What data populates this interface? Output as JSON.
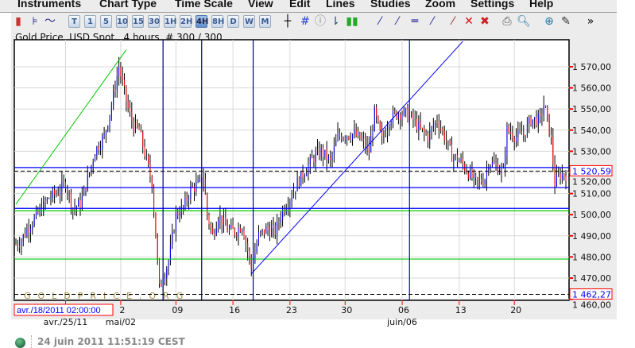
{
  "menu": [
    "Instruments",
    "Chart Type",
    "Time Scale",
    "View",
    "Edit",
    "Lines",
    "Studies",
    "Zoom",
    "Settings",
    "Help"
  ],
  "toolbar": {
    "timescales": [
      "T",
      "1",
      "5",
      "10",
      "15",
      "30",
      "1H",
      "2H",
      "4H",
      "8H",
      "D",
      "W",
      "M"
    ],
    "selected": "4H",
    "icons": [
      "candlestick-icon",
      "ohlc-bar-icon",
      "line-chart-icon",
      "crosshair-icon",
      "grid-icon",
      "info-icon",
      "price-label-icon",
      "volume-icon",
      "draw-line-icon",
      "draw-line-2-icon",
      "horizontal-line-icon",
      "draw-line-3-icon",
      "delete-line-icon",
      "delete-icon",
      "delete-all-icon",
      "print-icon",
      "print-preview-icon",
      "zoom-in-icon",
      "pin-icon",
      "overflow-icon"
    ]
  },
  "chart_title": "Gold Price, USD Spot , 4 hours, # 300 / 300",
  "watermark": "GOLDPRICE.ORG",
  "cursor_time_label": "avr./18/2011 02:00:00",
  "status": {
    "text": "24 juin 2011 11:51:19 CEST",
    "indicator_color": "#2e7d4f"
  },
  "chart_data": {
    "type": "ohlc",
    "bars": 300,
    "ylim": [
      1460,
      1580
    ],
    "y_ticks": [
      "1 460,00",
      "1 470,00",
      "1 480,00",
      "1 490,00",
      "1 500,00",
      "1 510,00",
      "1 520,00",
      "1 530,00",
      "1 540,00",
      "1 550,00",
      "1 560,00",
      "1 570,00"
    ],
    "y_values": [
      1460,
      1470,
      1480,
      1490,
      1500,
      1510,
      1520,
      1530,
      1540,
      1550,
      1560,
      1570
    ],
    "x_ticks": [
      {
        "label": "2",
        "bar": 57
      },
      {
        "label": "09",
        "bar": 87
      },
      {
        "label": "16",
        "bar": 118
      },
      {
        "label": "23",
        "bar": 149
      },
      {
        "label": "30",
        "bar": 179
      },
      {
        "label": "06",
        "bar": 210
      },
      {
        "label": "13",
        "bar": 241
      },
      {
        "label": "20",
        "bar": 271
      }
    ],
    "x_month_labels": [
      {
        "label": "avr./25/11",
        "bar": 27
      },
      {
        "label": "mai/02",
        "bar": 57
      },
      {
        "label": "juin/06",
        "bar": 210
      }
    ],
    "close_path": [
      [
        0,
        1486
      ],
      [
        3,
        1488
      ],
      [
        6,
        1493
      ],
      [
        14,
        1503
      ],
      [
        18,
        1508
      ],
      [
        22,
        1510
      ],
      [
        27,
        1515
      ],
      [
        31,
        1503
      ],
      [
        35,
        1505
      ],
      [
        40,
        1520
      ],
      [
        43,
        1530
      ],
      [
        48,
        1537
      ],
      [
        52,
        1552
      ],
      [
        56,
        1570
      ],
      [
        61,
        1550
      ],
      [
        64,
        1542
      ],
      [
        67,
        1540
      ],
      [
        72,
        1522
      ],
      [
        74,
        1515
      ],
      [
        78,
        1465
      ],
      [
        83,
        1478
      ],
      [
        87,
        1500
      ],
      [
        91,
        1503
      ],
      [
        95,
        1512
      ],
      [
        100,
        1515
      ],
      [
        102,
        1518
      ],
      [
        104,
        1500
      ],
      [
        107,
        1490
      ],
      [
        110,
        1500
      ],
      [
        115,
        1493
      ],
      [
        119,
        1492
      ],
      [
        123,
        1495
      ],
      [
        128,
        1475
      ],
      [
        132,
        1490
      ],
      [
        136,
        1493
      ],
      [
        141,
        1492
      ],
      [
        145,
        1502
      ],
      [
        149,
        1508
      ],
      [
        153,
        1515
      ],
      [
        158,
        1522
      ],
      [
        162,
        1527
      ],
      [
        166,
        1530
      ],
      [
        171,
        1525
      ],
      [
        175,
        1537
      ],
      [
        179,
        1538
      ],
      [
        184,
        1538
      ],
      [
        188,
        1535
      ],
      [
        192,
        1530
      ],
      [
        195,
        1548
      ],
      [
        199,
        1535
      ],
      [
        203,
        1545
      ],
      [
        207,
        1548
      ],
      [
        211,
        1548
      ],
      [
        216,
        1545
      ],
      [
        220,
        1540
      ],
      [
        224,
        1537
      ],
      [
        229,
        1545
      ],
      [
        233,
        1537
      ],
      [
        237,
        1528
      ],
      [
        242,
        1525
      ],
      [
        246,
        1520
      ],
      [
        250,
        1515
      ],
      [
        255,
        1517
      ],
      [
        257,
        1525
      ],
      [
        261,
        1523
      ],
      [
        265,
        1520
      ],
      [
        267,
        1540
      ],
      [
        272,
        1537
      ],
      [
        276,
        1538
      ],
      [
        280,
        1545
      ],
      [
        285,
        1545
      ],
      [
        287,
        1552
      ],
      [
        289,
        1545
      ],
      [
        291,
        1535
      ],
      [
        293,
        1515
      ],
      [
        296,
        1519
      ],
      [
        299,
        1519
      ]
    ],
    "last_price_label": "1 520,59",
    "last_price": 1520.59,
    "low_label": "1 462,27",
    "low_price": 1462.27,
    "horizontal_lines": [
      {
        "price": 1522.3,
        "color": "#0000ff"
      },
      {
        "price": 1512.8,
        "color": "#0000ff"
      },
      {
        "price": 1503,
        "color": "#0000ff"
      },
      {
        "price": 1501.8,
        "color": "#00cc00"
      },
      {
        "price": 1479,
        "color": "#00cc00"
      }
    ],
    "vertical_lines": [
      {
        "bar": 80,
        "color": "#000080"
      },
      {
        "bar": 101,
        "color": "#000080"
      },
      {
        "bar": 129,
        "color": "#000080"
      },
      {
        "bar": 214,
        "color": "#0000ff"
      }
    ],
    "trendlines": [
      {
        "from": [
          0,
          1505
        ],
        "to": [
          60,
          1578
        ],
        "color": "#00cc00"
      },
      {
        "from": [
          128,
          1472
        ],
        "to": [
          243,
          1582
        ],
        "color": "#0000ff"
      }
    ],
    "colors": {
      "up": "#0000ff",
      "down": "#ff0000",
      "wick": "#000000",
      "grid": "#d8d8d8",
      "tick": "#ff0000"
    }
  }
}
